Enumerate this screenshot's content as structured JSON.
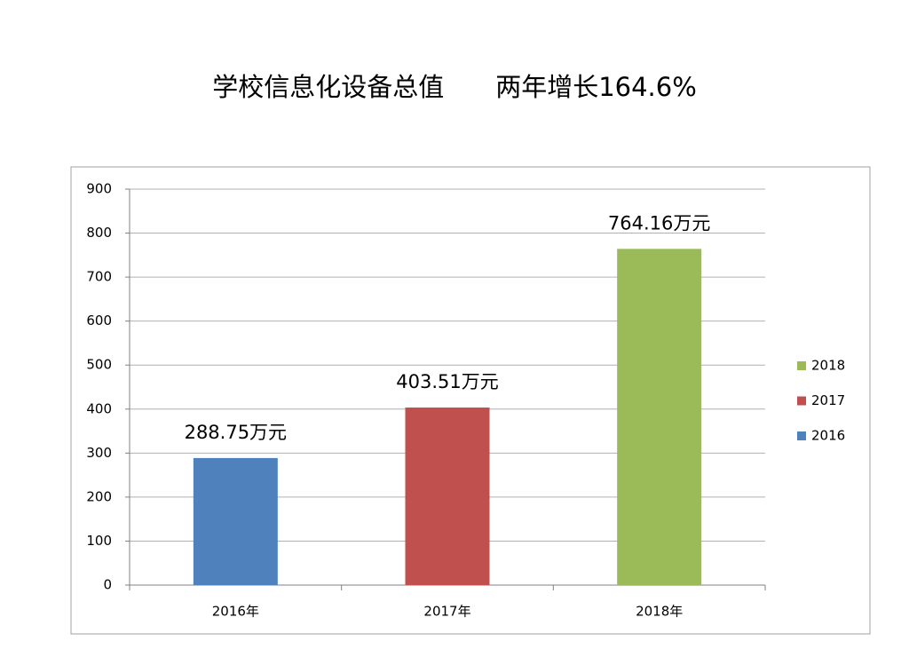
{
  "chart_data": {
    "type": "bar",
    "title": "学校信息化设备总值　　两年增长164.6%",
    "categories": [
      "2016年",
      "2017年",
      "2018年"
    ],
    "series": [
      {
        "name": "2016",
        "color": "#4f81bd",
        "values": [
          288.75,
          null,
          null
        ],
        "value_labels": [
          "288.75万元",
          null,
          null
        ]
      },
      {
        "name": "2017",
        "color": "#c0504d",
        "values": [
          null,
          403.51,
          null
        ],
        "value_labels": [
          null,
          "403.51万元",
          null
        ]
      },
      {
        "name": "2018",
        "color": "#9bbb59",
        "values": [
          null,
          null,
          764.16
        ],
        "value_labels": [
          null,
          null,
          "764.16万元"
        ]
      }
    ],
    "ylim": [
      0,
      900
    ],
    "yticks": [
      0,
      100,
      200,
      300,
      400,
      500,
      600,
      700,
      800,
      900
    ],
    "grid": true,
    "legend": "right"
  }
}
